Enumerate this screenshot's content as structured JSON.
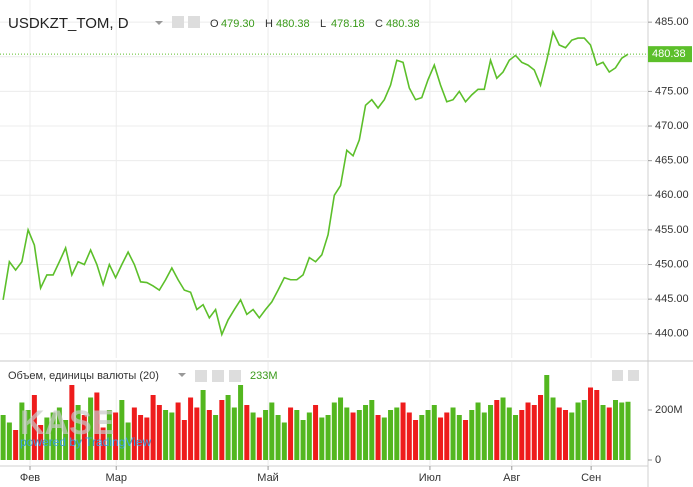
{
  "chart_data": [
    {
      "type": "line",
      "title": "USDKZT_TOM, D",
      "ohlc": [
        {
          "key": "O",
          "value": 479.3,
          "label": "479.30"
        },
        {
          "key": "H",
          "value": 480.38,
          "label": "480.38"
        },
        {
          "key": "L",
          "value": 478.18,
          "label": "478.18"
        },
        {
          "key": "C",
          "value": 480.38,
          "label": "480.38"
        }
      ],
      "last_value": 480.38,
      "watermark": "KASE",
      "watermark_sub": "powered by TradingView",
      "color": "#5cbf2a",
      "values": [
        444.9,
        450.4,
        449.2,
        450.4,
        455.0,
        452.8,
        446.6,
        448.5,
        448.5,
        450.4,
        452.4,
        448.5,
        450.4,
        450.0,
        452.1,
        450.0,
        447.1,
        450.0,
        448.1,
        450.0,
        451.8,
        450.0,
        447.5,
        447.4,
        446.9,
        446.3,
        447.8,
        449.5,
        447.8,
        446.3,
        446.0,
        443.5,
        444.2,
        442.3,
        443.5,
        439.9,
        442.0,
        443.5,
        444.9,
        442.8,
        443.5,
        442.3,
        443.5,
        444.6,
        446.3,
        448.1,
        447.8,
        447.8,
        448.5,
        451.0,
        450.4,
        451.4,
        454.3,
        460.0,
        461.4,
        466.5,
        465.7,
        468.0,
        473.0,
        473.8,
        472.6,
        473.8,
        475.9,
        479.5,
        479.2,
        475.5,
        473.8,
        474.1,
        476.7,
        478.8,
        475.9,
        473.5,
        473.8,
        475.0,
        473.5,
        474.5,
        475.3,
        475.3,
        479.5,
        476.9,
        477.8,
        479.5,
        480.2,
        479.2,
        478.8,
        478.1,
        475.9,
        479.5,
        483.6,
        481.7,
        481.3,
        482.4,
        482.7,
        482.7,
        481.7,
        478.8,
        479.2,
        477.8,
        478.4,
        479.8,
        480.38
      ],
      "xlim": [
        -0.5,
        103.2
      ],
      "xticks": [
        {
          "value": 4.3,
          "label": "Фев"
        },
        {
          "value": 18.1,
          "label": "Мар"
        },
        {
          "value": 42.4,
          "label": "Май"
        },
        {
          "value": 68.3,
          "label": "Июл"
        },
        {
          "value": 81.4,
          "label": "Авг"
        },
        {
          "value": 94.1,
          "label": "Сен"
        }
      ],
      "ylim": [
        436.5,
        488.2
      ],
      "yticks": [
        {
          "value": 440,
          "label": "440.00"
        },
        {
          "value": 445,
          "label": "445.00"
        },
        {
          "value": 450,
          "label": "450.00"
        },
        {
          "value": 455,
          "label": "455.00"
        },
        {
          "value": 460,
          "label": "460.00"
        },
        {
          "value": 465,
          "label": "465.00"
        },
        {
          "value": 470,
          "label": "470.00"
        },
        {
          "value": 475,
          "label": "475.00"
        },
        {
          "value": 480,
          "label": "480.00"
        },
        {
          "value": 485,
          "label": "485.00"
        }
      ],
      "grid": true
    },
    {
      "type": "bar",
      "title": "Объем, единицы валюты (20)",
      "current": {
        "value": 233,
        "label": "233M"
      },
      "up_color": "#53b71f",
      "down_color": "#ee1c1c",
      "values": [
        180,
        150,
        120,
        230,
        200,
        260,
        140,
        170,
        190,
        210,
        160,
        300,
        220,
        180,
        250,
        270,
        130,
        200,
        190,
        240,
        150,
        210,
        180,
        170,
        260,
        220,
        200,
        190,
        230,
        160,
        250,
        210,
        280,
        200,
        180,
        240,
        260,
        210,
        300,
        220,
        190,
        170,
        200,
        230,
        180,
        150,
        210,
        200,
        160,
        190,
        220,
        170,
        180,
        230,
        250,
        210,
        190,
        200,
        220,
        240,
        180,
        170,
        200,
        210,
        230,
        190,
        160,
        180,
        200,
        220,
        170,
        190,
        210,
        180,
        160,
        200,
        230,
        190,
        220,
        240,
        250,
        210,
        180,
        200,
        230,
        220,
        260,
        340,
        250,
        210,
        200,
        190,
        230,
        240,
        290,
        280,
        220,
        210,
        240,
        230,
        233
      ],
      "ylim": [
        0,
        380
      ],
      "yticks": [
        0,
        {
          "value": 200,
          "label": "200M"
        }
      ]
    }
  ]
}
